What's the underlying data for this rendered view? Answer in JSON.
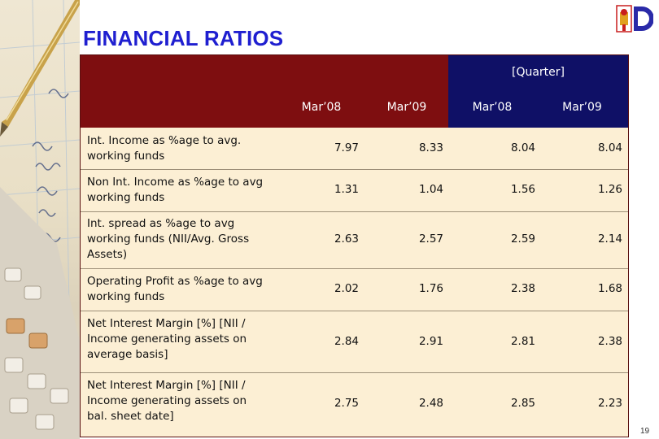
{
  "slide": {
    "title": "FINANCIAL RATIOS",
    "page_number": "19"
  },
  "table": {
    "group_header": "[Quarter]",
    "columns": [
      "Mar’08",
      "Mar’09",
      "Mar’08",
      "Mar’09"
    ],
    "rows": [
      {
        "label": "Int. Income as %age to avg. working funds",
        "values": [
          "7.97",
          "8.33",
          "8.04",
          "8.04"
        ]
      },
      {
        "label": "Non Int. Income as %age to avg working funds",
        "values": [
          "1.31",
          "1.04",
          "1.56",
          "1.26"
        ]
      },
      {
        "label": "Int. spread as %age to avg working funds (NII/Avg. Gross Assets)",
        "values": [
          "2.63",
          "2.57",
          "2.59",
          "2.14"
        ]
      },
      {
        "label": "Operating Profit as %age to avg working funds",
        "values": [
          "2.02",
          "1.76",
          "2.38",
          "1.68"
        ]
      },
      {
        "label": "Net Interest Margin [%] [NII / Income generating assets on average basis]",
        "values": [
          "2.84",
          "2.91",
          "2.81",
          "2.38"
        ]
      },
      {
        "label": "Net Interest Margin [%] [NII / Income generating assets on bal. sheet date]",
        "values": [
          "2.75",
          "2.48",
          "2.85",
          "2.23"
        ]
      }
    ]
  },
  "colors": {
    "title": "#1f1fd0",
    "header_maroon": "#7e0e10",
    "header_navy": "#0f1066",
    "table_body": "#fcefd4"
  },
  "icons": {
    "logo": "bank-logo-icon"
  }
}
